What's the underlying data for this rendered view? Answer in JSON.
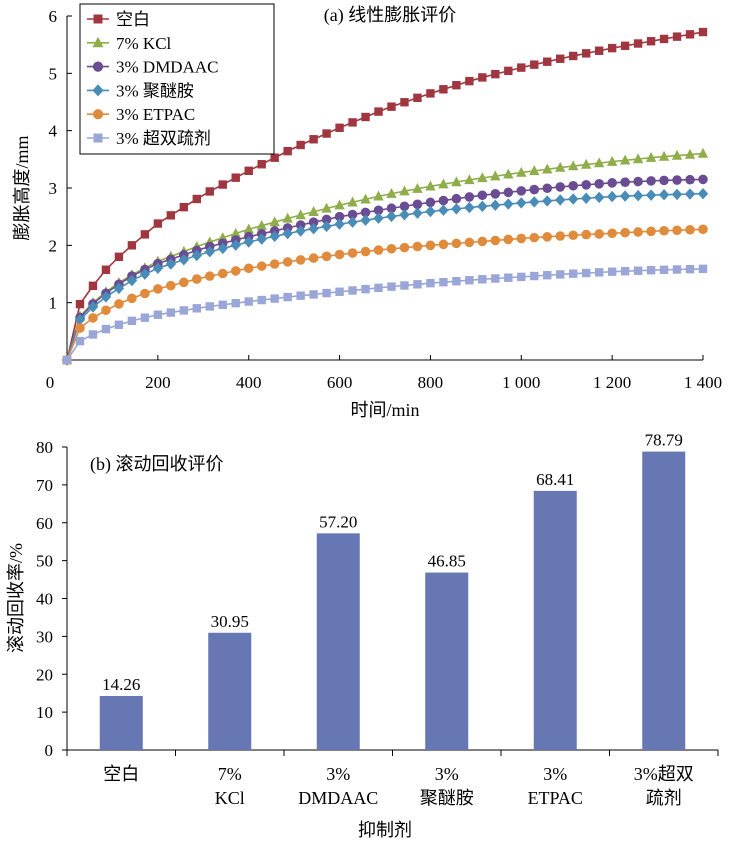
{
  "colors": {
    "blank": "#a0363f",
    "kcl": "#8fad4a",
    "dmdaac": "#6a4c93",
    "polyether": "#4a8cb8",
    "etpac": "#e08a3c",
    "super": "#9aa6d8",
    "bar": "#6677b3",
    "axis": "#000000"
  },
  "chart_data": [
    {
      "type": "line",
      "title": "(a) 线性膨胀评价",
      "xlabel": "时间/min",
      "ylabel": "膨胀高度/mm",
      "xlim": [
        0,
        1400
      ],
      "ylim": [
        0,
        6
      ],
      "x_ticks": [
        0,
        200,
        400,
        600,
        800,
        1000,
        1200,
        1400
      ],
      "x_tick_labels": [
        "0",
        "200",
        "400",
        "600",
        "800",
        "1 000",
        "1 200",
        "1 400"
      ],
      "y_ticks": [
        1,
        2,
        3,
        4,
        5,
        6
      ],
      "y_tick_labels": [
        "1",
        "2",
        "3",
        "4",
        "5",
        "6"
      ],
      "legend_position": "top-left",
      "grid": false,
      "x_start": 0,
      "x_end": 1400,
      "point_count": 50,
      "series": [
        {
          "name": "空白",
          "marker": "square",
          "color_key": "blank",
          "x": [
            0,
            10,
            20,
            30,
            50,
            75,
            100,
            150,
            200,
            300,
            400,
            500,
            600,
            700,
            800,
            900,
            1000,
            1100,
            1200,
            1300,
            1400
          ],
          "y": [
            0,
            0.55,
            0.82,
            1.0,
            1.22,
            1.48,
            1.7,
            2.05,
            2.38,
            2.88,
            3.3,
            3.7,
            4.05,
            4.38,
            4.65,
            4.9,
            5.1,
            5.28,
            5.44,
            5.58,
            5.72
          ]
        },
        {
          "name": "7% KCl",
          "marker": "triangle",
          "color_key": "kcl",
          "x": [
            0,
            10,
            20,
            30,
            50,
            75,
            100,
            150,
            200,
            300,
            400,
            500,
            600,
            700,
            800,
            900,
            1000,
            1100,
            1200,
            1300,
            1400
          ],
          "y": [
            0,
            0.45,
            0.65,
            0.78,
            0.95,
            1.12,
            1.28,
            1.52,
            1.72,
            2.02,
            2.28,
            2.5,
            2.7,
            2.88,
            3.03,
            3.16,
            3.27,
            3.37,
            3.46,
            3.54,
            3.6
          ]
        },
        {
          "name": "3% DMDAAC",
          "marker": "circle",
          "color_key": "dmdaac",
          "x": [
            0,
            10,
            20,
            30,
            50,
            75,
            100,
            150,
            200,
            300,
            400,
            500,
            600,
            700,
            800,
            900,
            1000,
            1100,
            1200,
            1300,
            1400
          ],
          "y": [
            0,
            0.44,
            0.63,
            0.76,
            0.93,
            1.1,
            1.25,
            1.5,
            1.68,
            1.95,
            2.15,
            2.33,
            2.5,
            2.63,
            2.75,
            2.86,
            2.95,
            3.03,
            3.09,
            3.13,
            3.15
          ]
        },
        {
          "name": "3% 聚醚胺",
          "marker": "diamond",
          "color_key": "polyether",
          "x": [
            0,
            10,
            20,
            30,
            50,
            75,
            100,
            150,
            200,
            300,
            400,
            500,
            600,
            700,
            800,
            900,
            1000,
            1100,
            1200,
            1300,
            1400
          ],
          "y": [
            0,
            0.42,
            0.6,
            0.72,
            0.88,
            1.04,
            1.18,
            1.42,
            1.6,
            1.86,
            2.06,
            2.23,
            2.37,
            2.49,
            2.59,
            2.67,
            2.74,
            2.8,
            2.85,
            2.88,
            2.9
          ]
        },
        {
          "name": "3% ETPAC",
          "marker": "circle",
          "color_key": "etpac",
          "x": [
            0,
            10,
            20,
            30,
            50,
            75,
            100,
            150,
            200,
            300,
            400,
            500,
            600,
            700,
            800,
            900,
            1000,
            1100,
            1200,
            1300,
            1400
          ],
          "y": [
            0,
            0.33,
            0.48,
            0.57,
            0.7,
            0.82,
            0.93,
            1.1,
            1.24,
            1.44,
            1.6,
            1.73,
            1.84,
            1.93,
            2.0,
            2.06,
            2.12,
            2.17,
            2.21,
            2.25,
            2.28
          ]
        },
        {
          "name": "3% 超双疏剂",
          "marker": "square",
          "color_key": "super",
          "x": [
            0,
            10,
            20,
            30,
            50,
            75,
            100,
            150,
            200,
            300,
            400,
            500,
            600,
            700,
            800,
            900,
            1000,
            1100,
            1200,
            1300,
            1400
          ],
          "y": [
            0,
            0.18,
            0.27,
            0.34,
            0.42,
            0.51,
            0.58,
            0.7,
            0.79,
            0.92,
            1.02,
            1.11,
            1.19,
            1.27,
            1.34,
            1.4,
            1.45,
            1.5,
            1.54,
            1.57,
            1.59
          ]
        }
      ]
    },
    {
      "type": "bar",
      "title": "(b) 滚动回收评价",
      "xlabel": "抑制剂",
      "ylabel": "滚动回收率/%",
      "ylim": [
        0,
        80
      ],
      "y_ticks": [
        0,
        10,
        20,
        30,
        40,
        50,
        60,
        70,
        80
      ],
      "y_tick_labels": [
        "0",
        "10",
        "20",
        "30",
        "40",
        "50",
        "60",
        "70",
        "80"
      ],
      "categories": [
        [
          "空白"
        ],
        [
          "7%",
          "KCl"
        ],
        [
          "3%",
          "DMDAAC"
        ],
        [
          "3%",
          "聚醚胺"
        ],
        [
          "3%",
          "ETPAC"
        ],
        [
          "3%超双",
          "疏剂"
        ]
      ],
      "values": [
        14.26,
        30.95,
        57.2,
        46.85,
        68.41,
        78.79
      ],
      "value_labels": [
        "14.26",
        "30.95",
        "57.20",
        "46.85",
        "68.41",
        "78.79"
      ],
      "grid": false
    }
  ]
}
